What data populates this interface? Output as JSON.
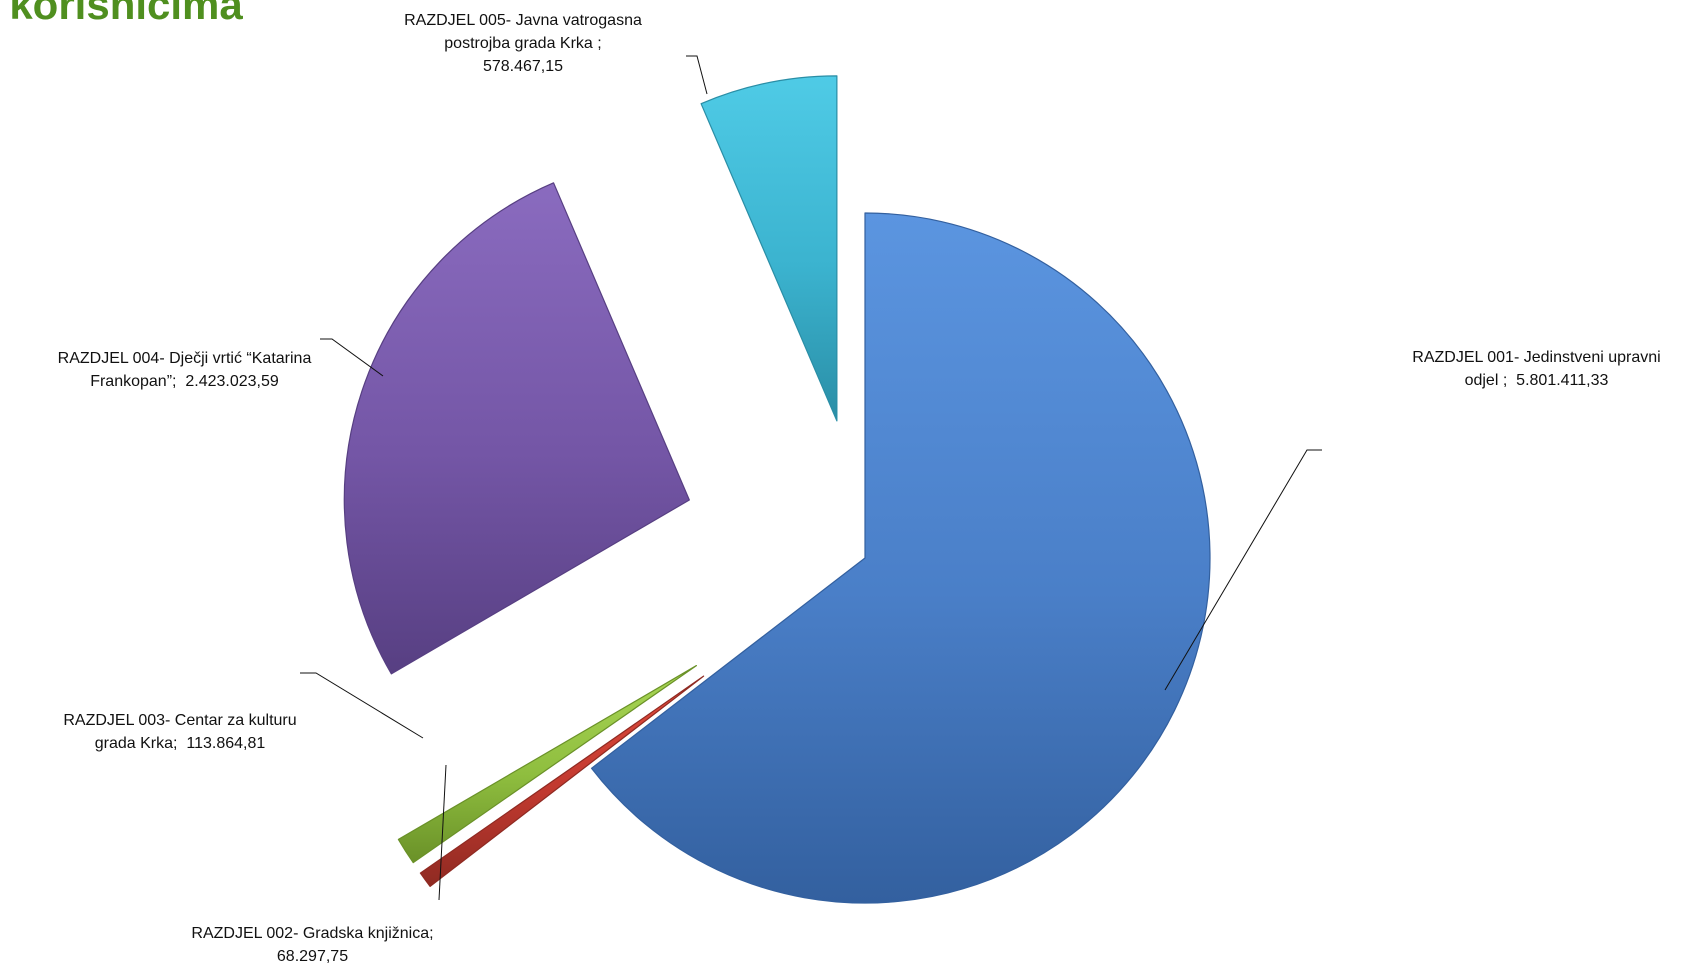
{
  "page": {
    "title": "o korisnicima"
  },
  "chart_data": {
    "type": "pie",
    "title": "",
    "start_angle_deg": 0,
    "direction": "clockwise",
    "exploded": true,
    "slices": [
      {
        "id": "001",
        "name": "RAZDJEL 001- Jedinstveni upravni odjel",
        "name_lines": [
          "RAZDJEL 001- Jedinstveni upravni",
          "odjel ;"
        ],
        "value": 5801411.33,
        "value_label": "5.801.411,33",
        "color": "#4a7fc8",
        "color_light": "#5b95e0",
        "color_dark": "#33609f"
      },
      {
        "id": "002",
        "name": "RAZDJEL 002- Gradska knjižnica",
        "name_lines": [
          "RAZDJEL 002- Gradska knjižnica;"
        ],
        "value": 68297.75,
        "value_label": "68.297,75",
        "color": "#c0392f",
        "color_light": "#e04a3c",
        "color_dark": "#8f2a22"
      },
      {
        "id": "003",
        "name": "RAZDJEL 003- Centar za kulturu grada Krka",
        "name_lines": [
          "RAZDJEL 003- Centar za kulturu",
          "grada Krka;"
        ],
        "value": 113864.81,
        "value_label": "113.864,81",
        "color": "#8fbe3f",
        "color_light": "#a9d655",
        "color_dark": "#6a9128"
      },
      {
        "id": "004",
        "name": "RAZDJEL 004- Dječji vrtić “Katarina Frankopan”",
        "name_lines": [
          "RAZDJEL 004- Dječji vrtić “Katarina",
          "Frankopan”;"
        ],
        "value": 2423023.59,
        "value_label": "2.423.023,59",
        "color": "#7456a6",
        "color_light": "#8a6bbf",
        "color_dark": "#573f82"
      },
      {
        "id": "005",
        "name": "RAZDJEL 005- Javna vatrogasna postrojba grada Krka",
        "name_lines": [
          "RAZDJEL 005- Javna vatrogasna",
          "postrojba grada Krka  ;"
        ],
        "value": 578467.15,
        "value_label": "578.467,15",
        "color": "#3bb3cf",
        "color_light": "#4fcbe6",
        "color_dark": "#2a8ea6"
      }
    ]
  }
}
